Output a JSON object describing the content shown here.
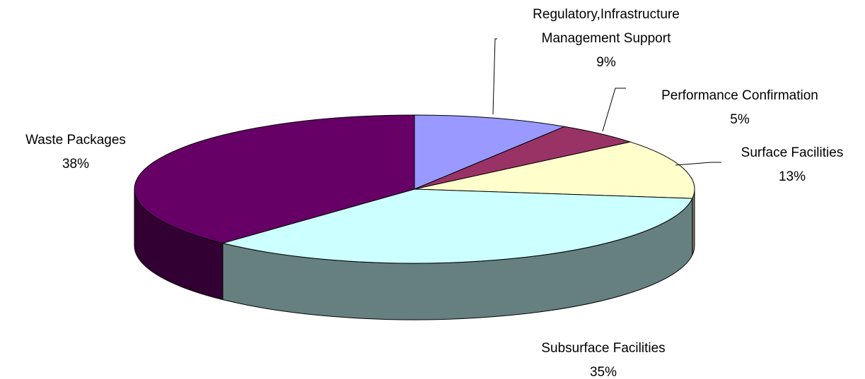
{
  "chart_data": {
    "type": "pie3d",
    "categories": [
      "Regulatory,Infrastructure\nManagement Support",
      "Performance Confirmation",
      "Surface Facilities",
      "Subsurface Facilities",
      "Waste Packages"
    ],
    "values": [
      9,
      5,
      13,
      35,
      38
    ],
    "value_labels": [
      "9%",
      "5%",
      "13%",
      "35%",
      "38%"
    ],
    "colors": [
      "#9999ff",
      "#993366",
      "#ffffcc",
      "#ccffff",
      "#660066"
    ]
  }
}
